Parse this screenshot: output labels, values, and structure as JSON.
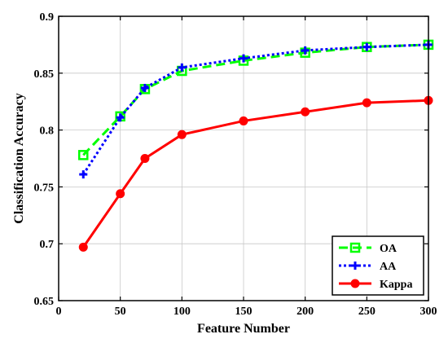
{
  "chart_data": {
    "type": "line",
    "title": "",
    "xlabel": "Feature Number",
    "ylabel": "Classification Accuracy",
    "xlim": [
      0,
      300
    ],
    "ylim": [
      0.65,
      0.9
    ],
    "xticks": [
      0,
      50,
      100,
      150,
      200,
      250,
      300
    ],
    "yticks": [
      0.65,
      0.7,
      0.75,
      0.8,
      0.85,
      0.9
    ],
    "xtick_labels": [
      "0",
      "50",
      "100",
      "150",
      "200",
      "250",
      "300"
    ],
    "ytick_labels": [
      "0.65",
      "0.7",
      "0.75",
      "0.8",
      "0.85",
      "0.9"
    ],
    "grid": true,
    "legend_position": "bottom-right",
    "x": [
      20,
      50,
      70,
      100,
      150,
      200,
      250,
      300
    ],
    "series": [
      {
        "name": "OA",
        "color": "#00ff00",
        "line": "dashed",
        "marker": "square",
        "values": [
          0.778,
          0.812,
          0.836,
          0.852,
          0.861,
          0.868,
          0.873,
          0.875
        ]
      },
      {
        "name": "AA",
        "color": "#0000ff",
        "line": "dotted",
        "marker": "plus",
        "values": [
          0.761,
          0.811,
          0.837,
          0.855,
          0.863,
          0.87,
          0.873,
          0.875
        ]
      },
      {
        "name": "Kappa",
        "color": "#ff0000",
        "line": "solid",
        "marker": "circle",
        "values": [
          0.697,
          0.744,
          0.775,
          0.796,
          0.808,
          0.816,
          0.824,
          0.826
        ]
      }
    ]
  }
}
